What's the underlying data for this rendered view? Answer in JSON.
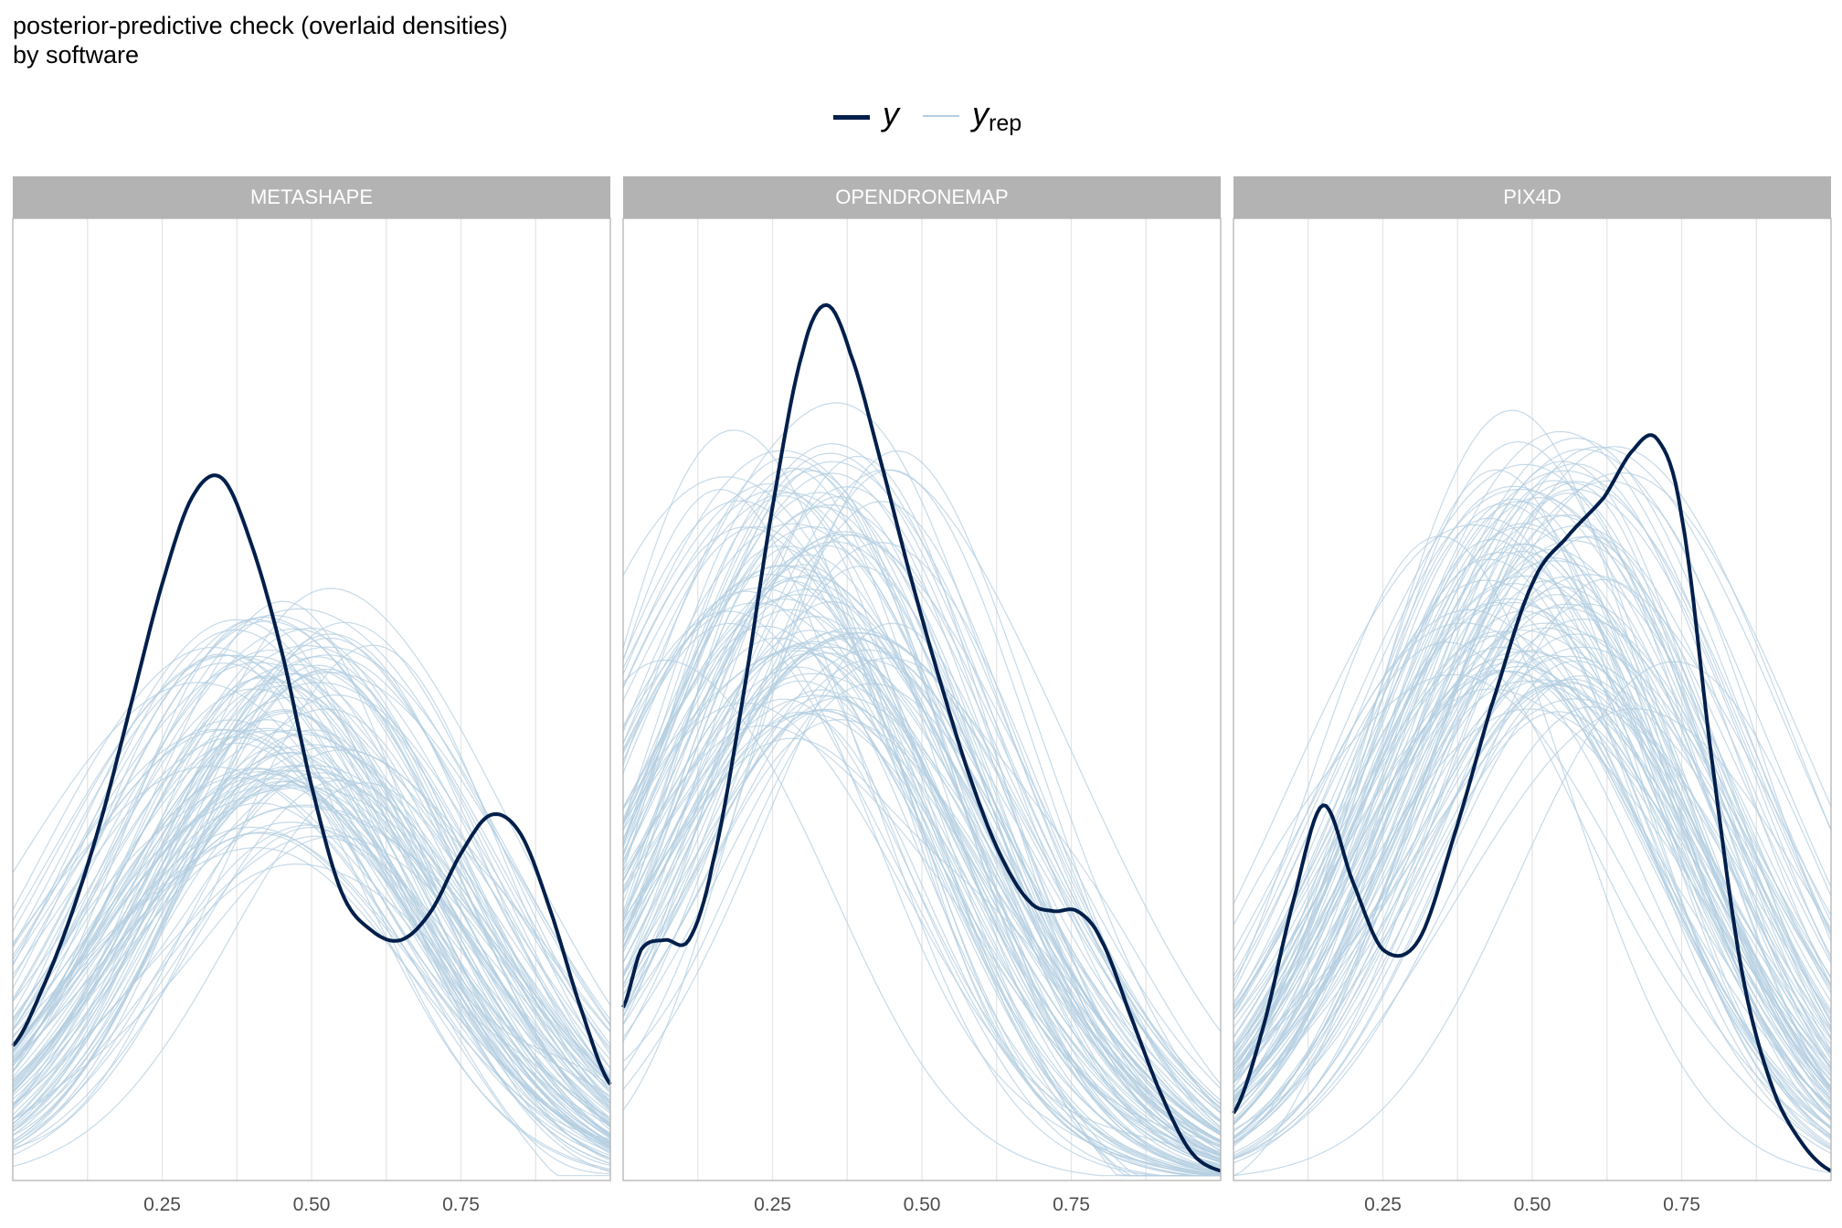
{
  "title": "posterior-predictive check (overlaid densities)",
  "subtitle": "by software",
  "legend": {
    "y_label": "y",
    "yrep_label": "y",
    "yrep_sub": "rep",
    "y_color": "#011f4b",
    "yrep_color": "#b3cde0"
  },
  "chart_data": {
    "type": "line",
    "xlim": [
      0.0,
      1.0
    ],
    "x_ticks": [
      "0.25",
      "0.50",
      "0.75"
    ],
    "y_ticks_shown": false,
    "grid": true,
    "legend_position": "top",
    "panels": [
      {
        "label": "METASHAPE",
        "observed_peaks": [
          {
            "x": 0.37,
            "height": 0.73
          },
          {
            "x": 0.68,
            "valley": 0.26
          },
          {
            "x": 0.83,
            "height": 0.39
          }
        ],
        "y_series": {
          "name": "y",
          "x": [
            0.0,
            0.05,
            0.1,
            0.15,
            0.2,
            0.25,
            0.3,
            0.35,
            0.4,
            0.45,
            0.5,
            0.55,
            0.6,
            0.65,
            0.7,
            0.75,
            0.8,
            0.85,
            0.9,
            0.95,
            1.0
          ],
          "values": [
            0.14,
            0.2,
            0.28,
            0.38,
            0.5,
            0.62,
            0.71,
            0.73,
            0.66,
            0.55,
            0.41,
            0.3,
            0.26,
            0.25,
            0.28,
            0.34,
            0.38,
            0.36,
            0.28,
            0.18,
            0.1
          ]
        },
        "replicates": 100,
        "rep_mean_mode": 0.45,
        "rep_mean_height": 0.5
      },
      {
        "label": "OPENDRONEMAP",
        "y_series": {
          "name": "y",
          "x": [
            0.0,
            0.03,
            0.07,
            0.11,
            0.15,
            0.2,
            0.25,
            0.3,
            0.34,
            0.38,
            0.43,
            0.48,
            0.53,
            0.58,
            0.63,
            0.68,
            0.72,
            0.76,
            0.8,
            0.85,
            0.9,
            0.95,
            1.0
          ],
          "values": [
            0.18,
            0.24,
            0.25,
            0.25,
            0.33,
            0.5,
            0.7,
            0.86,
            0.91,
            0.86,
            0.75,
            0.63,
            0.52,
            0.42,
            0.34,
            0.29,
            0.28,
            0.28,
            0.25,
            0.17,
            0.09,
            0.03,
            0.01
          ]
        },
        "replicates": 100,
        "rep_mean_mode": 0.33,
        "rep_mean_height": 0.67
      },
      {
        "label": "PIX4D",
        "y_series": {
          "name": "y",
          "x": [
            0.0,
            0.05,
            0.1,
            0.15,
            0.2,
            0.25,
            0.31,
            0.37,
            0.43,
            0.5,
            0.56,
            0.62,
            0.67,
            0.71,
            0.75,
            0.8,
            0.85,
            0.9,
            0.95,
            1.0
          ],
          "values": [
            0.07,
            0.16,
            0.29,
            0.39,
            0.31,
            0.24,
            0.25,
            0.36,
            0.49,
            0.62,
            0.67,
            0.71,
            0.76,
            0.77,
            0.69,
            0.44,
            0.22,
            0.1,
            0.04,
            0.01
          ]
        },
        "replicates": 100,
        "rep_mean_mode": 0.5,
        "rep_mean_height": 0.67
      }
    ]
  }
}
